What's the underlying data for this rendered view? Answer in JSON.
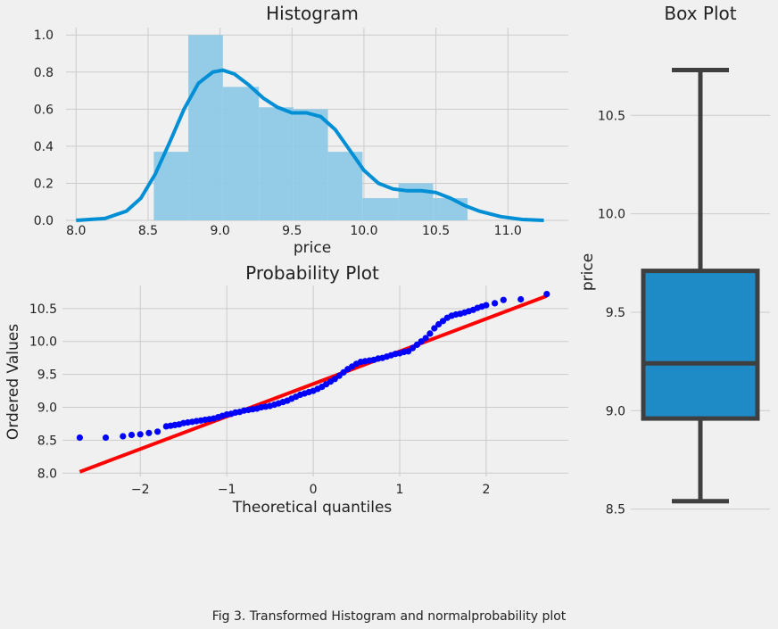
{
  "caption": "Fig 3. Transformed Histogram and normalprobability plot",
  "colors": {
    "background": "#f0f0f0",
    "grid": "#cbcbcb",
    "hist_fill": "#8ec9e6",
    "kde_line": "#008fd5",
    "points": "#0000ff",
    "fit_line": "#ff0000",
    "box_fill": "#1f8bc6",
    "box_line": "#3f3f3f"
  },
  "chart_data": [
    {
      "type": "bar",
      "title": "Histogram",
      "xlabel": "price",
      "ylabel": "",
      "xlim": [
        7.93,
        11.42
      ],
      "ylim": [
        0,
        1.03
      ],
      "xticks": [
        "8.0",
        "8.5",
        "9.0",
        "9.5",
        "10.0",
        "10.5",
        "11.0"
      ],
      "yticks": [
        "0.0",
        "0.2",
        "0.4",
        "0.6",
        "0.8",
        "1.0"
      ],
      "grid": true,
      "bins": [
        {
          "x0": 8.54,
          "x1": 8.78,
          "value": 0.37
        },
        {
          "x0": 8.78,
          "x1": 9.02,
          "value": 1.0
        },
        {
          "x0": 9.02,
          "x1": 9.27,
          "value": 0.72
        },
        {
          "x0": 9.27,
          "x1": 9.51,
          "value": 0.61
        },
        {
          "x0": 9.51,
          "x1": 9.75,
          "value": 0.6
        },
        {
          "x0": 9.75,
          "x1": 9.99,
          "value": 0.37
        },
        {
          "x0": 9.99,
          "x1": 10.24,
          "value": 0.12
        },
        {
          "x0": 10.24,
          "x1": 10.48,
          "value": 0.2
        },
        {
          "x0": 10.48,
          "x1": 10.72,
          "value": 0.12
        }
      ],
      "kde": {
        "x": [
          8.0,
          8.2,
          8.35,
          8.45,
          8.55,
          8.65,
          8.75,
          8.85,
          8.95,
          9.02,
          9.1,
          9.2,
          9.3,
          9.4,
          9.5,
          9.6,
          9.7,
          9.8,
          9.9,
          10.0,
          10.1,
          10.2,
          10.3,
          10.4,
          10.5,
          10.6,
          10.7,
          10.8,
          10.95,
          11.1,
          11.25
        ],
        "y": [
          0.0,
          0.01,
          0.05,
          0.12,
          0.25,
          0.42,
          0.6,
          0.74,
          0.8,
          0.81,
          0.79,
          0.73,
          0.66,
          0.61,
          0.58,
          0.58,
          0.56,
          0.49,
          0.38,
          0.27,
          0.2,
          0.17,
          0.16,
          0.16,
          0.15,
          0.12,
          0.08,
          0.05,
          0.02,
          0.005,
          0.0
        ]
      }
    },
    {
      "type": "scatter",
      "title": "Probability Plot",
      "xlabel": "Theoretical quantiles",
      "ylabel": "Ordered Values",
      "xlim": [
        -2.9,
        2.95
      ],
      "ylim": [
        7.95,
        10.85
      ],
      "xticks": [
        "−2",
        "−1",
        "0",
        "1",
        "2"
      ],
      "yticks": [
        "8.0",
        "8.5",
        "9.0",
        "9.5",
        "10.0",
        "10.5"
      ],
      "grid": true,
      "points": {
        "x": [
          -2.7,
          -2.4,
          -2.2,
          -2.1,
          -2.0,
          -1.9,
          -1.8,
          -1.7,
          -1.65,
          -1.6,
          -1.55,
          -1.5,
          -1.45,
          -1.4,
          -1.35,
          -1.3,
          -1.25,
          -1.2,
          -1.15,
          -1.1,
          -1.05,
          -1.0,
          -0.95,
          -0.9,
          -0.85,
          -0.8,
          -0.75,
          -0.7,
          -0.65,
          -0.6,
          -0.55,
          -0.5,
          -0.45,
          -0.4,
          -0.35,
          -0.3,
          -0.25,
          -0.2,
          -0.15,
          -0.1,
          -0.05,
          0.0,
          0.05,
          0.1,
          0.15,
          0.2,
          0.25,
          0.3,
          0.35,
          0.4,
          0.45,
          0.5,
          0.55,
          0.6,
          0.65,
          0.7,
          0.75,
          0.8,
          0.85,
          0.9,
          0.95,
          1.0,
          1.05,
          1.1,
          1.15,
          1.2,
          1.25,
          1.3,
          1.35,
          1.4,
          1.45,
          1.5,
          1.55,
          1.6,
          1.65,
          1.7,
          1.75,
          1.8,
          1.85,
          1.9,
          1.95,
          2.0,
          2.1,
          2.2,
          2.4,
          2.7
        ],
        "y": [
          8.54,
          8.54,
          8.56,
          8.58,
          8.59,
          8.61,
          8.63,
          8.71,
          8.72,
          8.73,
          8.74,
          8.76,
          8.77,
          8.78,
          8.79,
          8.8,
          8.81,
          8.82,
          8.83,
          8.85,
          8.87,
          8.89,
          8.9,
          8.92,
          8.93,
          8.95,
          8.96,
          8.97,
          8.98,
          9.0,
          9.01,
          9.02,
          9.04,
          9.06,
          9.08,
          9.1,
          9.13,
          9.16,
          9.19,
          9.21,
          9.23,
          9.25,
          9.28,
          9.31,
          9.35,
          9.39,
          9.43,
          9.48,
          9.53,
          9.58,
          9.62,
          9.66,
          9.69,
          9.7,
          9.71,
          9.72,
          9.74,
          9.75,
          9.77,
          9.79,
          9.81,
          9.82,
          9.84,
          9.85,
          9.9,
          9.95,
          10.0,
          10.05,
          10.12,
          10.2,
          10.26,
          10.31,
          10.36,
          10.39,
          10.41,
          10.42,
          10.44,
          10.46,
          10.48,
          10.51,
          10.53,
          10.55,
          10.58,
          10.63,
          10.64,
          10.72
        ]
      },
      "fit_line": {
        "x": [
          -2.7,
          2.7
        ],
        "y": [
          8.02,
          10.69
        ]
      }
    },
    {
      "type": "box",
      "title": "Box Plot",
      "xlabel": "",
      "ylabel": "price",
      "ylim": [
        8.48,
        10.95
      ],
      "yticks": [
        "8.5",
        "9.0",
        "9.5",
        "10.0",
        "10.5"
      ],
      "grid": true,
      "whisker_low": 8.54,
      "q1": 8.96,
      "median": 9.24,
      "q3": 9.71,
      "whisker_high": 10.73
    }
  ]
}
